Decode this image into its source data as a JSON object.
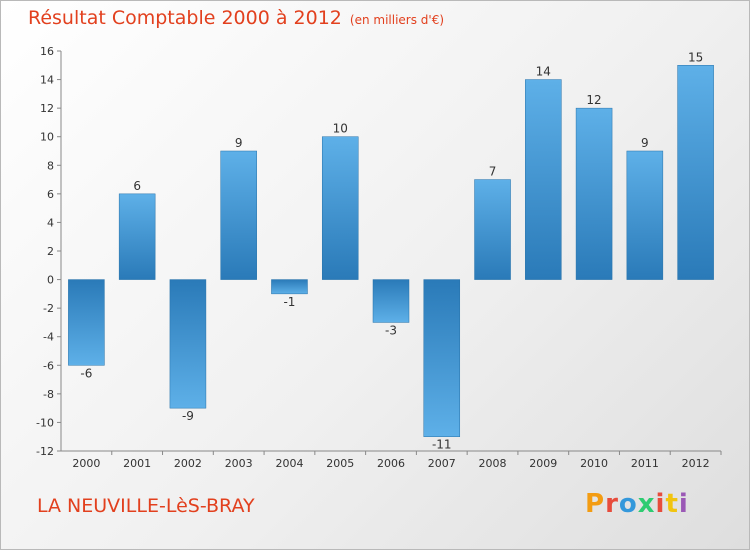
{
  "title": "Résultat Comptable 2000 à 2012",
  "subtitle": "(en milliers d'€)",
  "commune": "LA NEUVILLE-LèS-BRAY",
  "logo": {
    "text": "Proxiti",
    "colors": [
      "#f39c12",
      "#e74c3c",
      "#3498db",
      "#2ecc71",
      "#e74c3c",
      "#f1c40f",
      "#9b59b6"
    ]
  },
  "colors": {
    "title": "#e2401e",
    "bar_dark": "#2a7ab8",
    "bar_light": "#5eb0e8"
  },
  "chart_data": {
    "type": "bar",
    "categories": [
      "2000",
      "2001",
      "2002",
      "2003",
      "2004",
      "2005",
      "2006",
      "2007",
      "2008",
      "2009",
      "2010",
      "2011",
      "2012"
    ],
    "values": [
      -6,
      6,
      -9,
      9,
      -1,
      10,
      -3,
      -11,
      7,
      14,
      12,
      9,
      15
    ],
    "ylim": [
      -12,
      16
    ],
    "yticks": [
      16,
      14,
      12,
      10,
      8,
      6,
      4,
      2,
      0,
      -2,
      -4,
      -6,
      -8,
      -10,
      -12
    ],
    "grid": false,
    "legend": "none"
  }
}
